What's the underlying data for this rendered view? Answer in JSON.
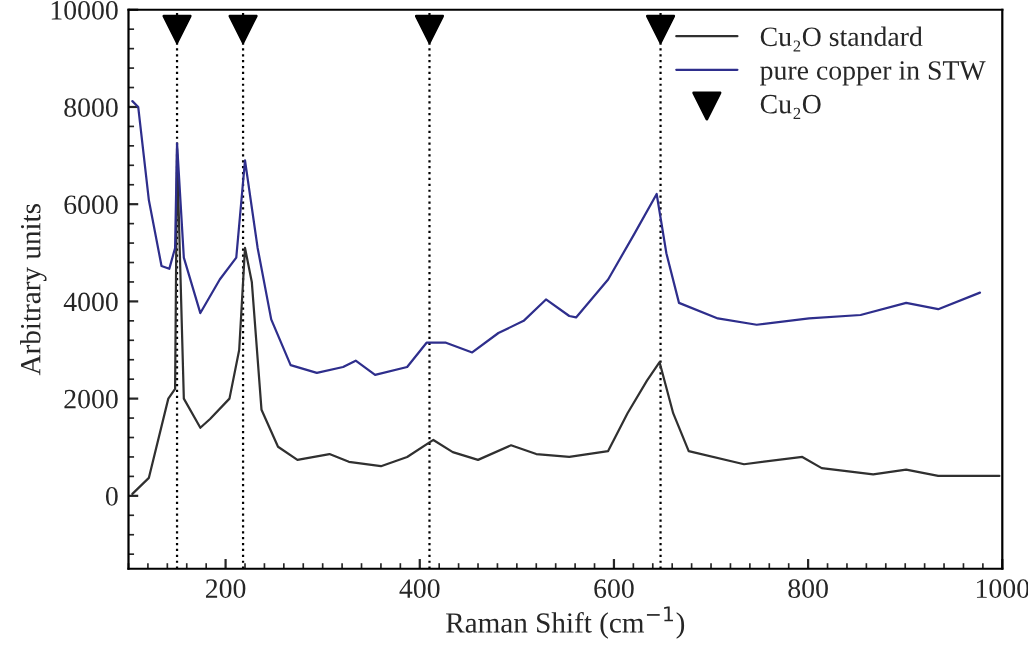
{
  "chart_data": {
    "type": "line",
    "xlabel": "Raman Shift (cm$^{−1}$)",
    "ylabel": "Arbitrary units",
    "xlim": [
      100,
      1000
    ],
    "xticks": [
      200,
      400,
      600,
      800,
      1000
    ],
    "ylim": [
      -1500,
      10000
    ],
    "yticks": [
      0,
      2000,
      4000,
      6000,
      8000,
      10000
    ],
    "grid": false,
    "legend": "top right",
    "marker": "none",
    "line_style": "solid",
    "series": [
      {
        "name": "Cu₂O standard",
        "color": "#303030",
        "x": [
          104,
          121,
          141,
          148,
          150,
          157,
          174,
          184,
          204,
          214,
          220,
          227,
          237,
          254,
          274,
          307,
          327,
          360,
          387,
          414,
          434,
          460,
          494,
          520,
          554,
          594,
          614,
          634,
          647,
          661,
          677,
          734,
          794,
          814,
          867,
          901,
          934,
          997
        ],
        "values": [
          40,
          370,
          2000,
          2200,
          7100,
          2000,
          1400,
          1580,
          2000,
          3000,
          5100,
          4400,
          1770,
          1010,
          740,
          860,
          700,
          610,
          800,
          1150,
          900,
          740,
          1040,
          860,
          800,
          920,
          1700,
          2370,
          2750,
          1700,
          920,
          650,
          800,
          570,
          440,
          540,
          410,
          410
        ]
      },
      {
        "name": "pure copper in STW",
        "color": "#2e2e8c",
        "x": [
          104,
          110,
          121,
          134,
          142,
          148,
          150,
          157,
          174,
          194,
          211,
          220,
          233,
          247,
          267,
          294,
          321,
          334,
          354,
          387,
          407,
          427,
          454,
          481,
          507,
          530,
          554,
          561,
          594,
          621,
          644,
          654,
          667,
          707,
          747,
          801,
          854,
          901,
          934,
          977
        ],
        "values": [
          8120,
          8000,
          6080,
          4730,
          4670,
          5100,
          7250,
          4900,
          3760,
          4450,
          4900,
          6900,
          5100,
          3630,
          2690,
          2530,
          2650,
          2780,
          2490,
          2650,
          3150,
          3150,
          2950,
          3350,
          3600,
          4040,
          3700,
          3670,
          4450,
          5390,
          6210,
          4990,
          3970,
          3650,
          3520,
          3650,
          3720,
          3970,
          3840,
          4180
        ]
      },
      {
        "name": "Cu₂O",
        "type": "scatter",
        "marker": "triangle",
        "color": "#000000",
        "x": [
          150,
          218,
          410,
          648
        ],
        "values": [
          9600,
          9600,
          9600,
          9600
        ]
      }
    ],
    "ref_lines": [
      {
        "axis": "x",
        "value": 150,
        "color": "#000000",
        "line_style": "dotted"
      },
      {
        "axis": "x",
        "value": 218,
        "color": "#000000",
        "line_style": "dotted"
      },
      {
        "axis": "x",
        "value": 410,
        "color": "#000000",
        "line_style": "dotted"
      },
      {
        "axis": "x",
        "value": 648,
        "color": "#000000",
        "line_style": "dotted"
      }
    ]
  }
}
